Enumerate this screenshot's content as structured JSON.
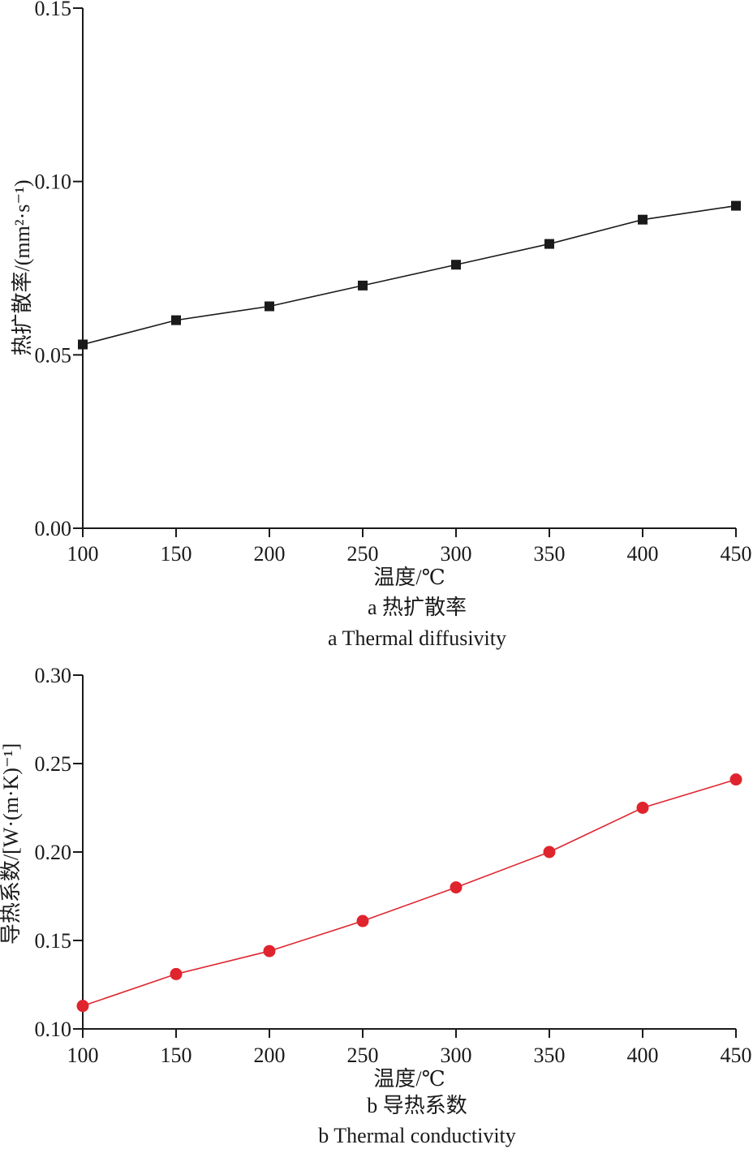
{
  "chart_data": [
    {
      "type": "line",
      "x": [
        100,
        150,
        200,
        250,
        300,
        350,
        400,
        450
      ],
      "series": [
        {
          "values": [
            0.053,
            0.06,
            0.064,
            0.07,
            0.076,
            0.082,
            0.089,
            0.093
          ],
          "color": "#1a1a1a",
          "marker": "square"
        }
      ],
      "xlabel": "温度/℃",
      "ylabel": "热扩散率/(mm²·s⁻¹)",
      "xlim": [
        100,
        450
      ],
      "ylim": [
        0.0,
        0.15
      ],
      "xticks": [
        "100",
        "150",
        "200",
        "250",
        "300",
        "350",
        "400",
        "450"
      ],
      "yticks": [
        "0.00",
        "0.05",
        "0.10",
        "0.15"
      ],
      "caption_cn": "a 热扩散率",
      "caption_en": "a Thermal diffusivity",
      "grid": false
    },
    {
      "type": "line",
      "x": [
        100,
        150,
        200,
        250,
        300,
        350,
        400,
        450
      ],
      "series": [
        {
          "values": [
            0.113,
            0.131,
            0.144,
            0.161,
            0.18,
            0.2,
            0.225,
            0.241
          ],
          "color": "#e0242e",
          "marker": "circle"
        }
      ],
      "xlabel": "温度/℃",
      "ylabel": "导热系数/[W·(m·K)⁻¹]",
      "xlim": [
        100,
        450
      ],
      "ylim": [
        0.1,
        0.3
      ],
      "xticks": [
        "100",
        "150",
        "200",
        "250",
        "300",
        "350",
        "400",
        "450"
      ],
      "yticks": [
        "0.10",
        "0.15",
        "0.20",
        "0.25",
        "0.30"
      ],
      "caption_cn": "b 导热系数",
      "caption_en": "b Thermal conductivity",
      "grid": false
    }
  ]
}
